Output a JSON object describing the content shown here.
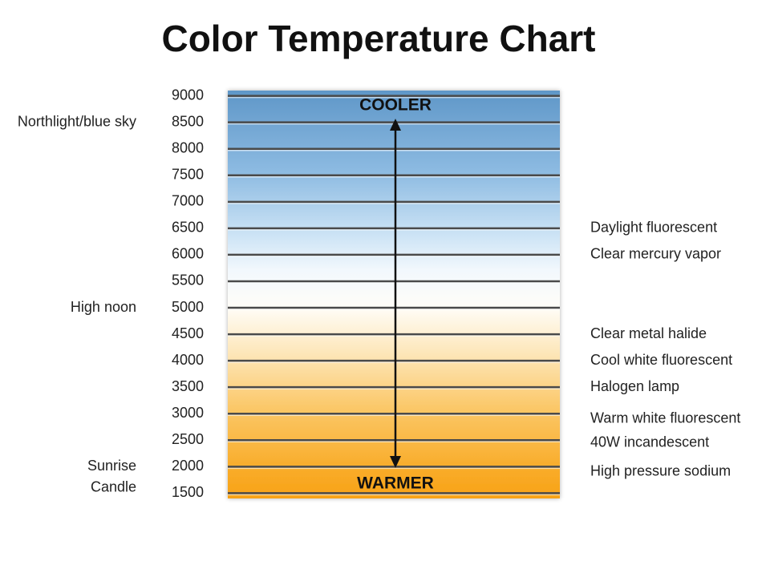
{
  "chart_data": {
    "type": "scale",
    "title": "Color Temperature Chart",
    "top_label": "COOLER",
    "bottom_label": "WARMER",
    "ylim": [
      1400,
      9100
    ],
    "yticks": [
      9000,
      8500,
      8000,
      7500,
      7000,
      6500,
      6000,
      5500,
      5000,
      4500,
      4000,
      3500,
      3000,
      2500,
      2000,
      1500
    ],
    "grid": true,
    "annotations": [
      {
        "text": "Northlight/blue sky",
        "value": 8500,
        "side": "left"
      },
      {
        "text": "High noon",
        "value": 5000,
        "side": "left"
      },
      {
        "text": "Sunrise",
        "value": 2000,
        "side": "left"
      },
      {
        "text": "Candle",
        "value": 1600,
        "side": "left"
      },
      {
        "text": "Daylight fluorescent",
        "value": 6500,
        "side": "right"
      },
      {
        "text": "Clear mercury vapor",
        "value": 6000,
        "side": "right"
      },
      {
        "text": "Clear metal halide",
        "value": 4500,
        "side": "right"
      },
      {
        "text": "Cool white fluorescent",
        "value": 4000,
        "side": "right"
      },
      {
        "text": "Halogen lamp",
        "value": 3500,
        "side": "right"
      },
      {
        "text": "Warm white fluorescent",
        "value": 2900,
        "side": "right"
      },
      {
        "text": "40W incandescent",
        "value": 2450,
        "side": "right"
      },
      {
        "text": "High pressure sodium",
        "value": 1900,
        "side": "right"
      }
    ]
  }
}
